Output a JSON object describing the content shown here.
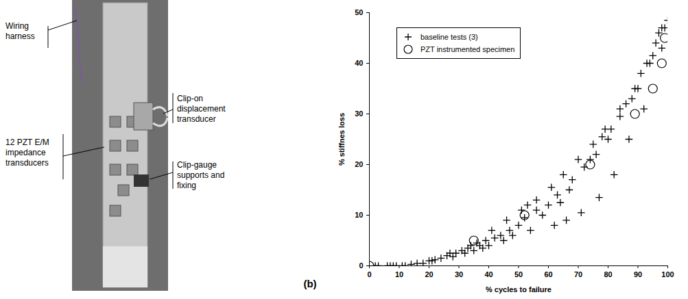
{
  "photo": {
    "labels": [
      "Wiring harness",
      "Clip-on displacement transducer",
      "12 PZT E/M impedance transducers",
      "Clip-gauge supports and fixing"
    ]
  },
  "panel_label": "(b)",
  "chart_data": {
    "type": "scatter",
    "x_label": "% cycles to failure",
    "y_label": "% stiffnes loss",
    "xlim": [
      0,
      100
    ],
    "ylim": [
      0,
      50
    ],
    "xticks": [
      0,
      10,
      20,
      30,
      40,
      50,
      60,
      70,
      80,
      90,
      100
    ],
    "yticks": [
      0,
      10,
      20,
      30,
      40,
      50
    ],
    "grid": false,
    "legend": "upper left",
    "series": [
      {
        "name": "baseline tests (3)",
        "color": "#000000",
        "marker": "plus",
        "x": [
          2,
          3,
          6,
          7,
          8,
          9,
          11,
          12,
          14,
          16,
          18,
          20,
          21,
          22,
          24,
          26,
          27,
          28,
          29,
          31,
          32,
          33,
          34,
          35,
          36,
          37,
          38,
          39,
          40,
          41,
          42,
          44,
          45,
          46,
          47,
          48,
          50,
          51,
          52,
          53,
          54,
          56,
          56,
          58,
          60,
          61,
          62,
          63,
          64,
          65,
          66,
          67,
          68,
          70,
          71,
          72,
          74,
          75,
          76,
          77,
          78,
          79,
          80,
          81,
          82,
          84,
          84,
          86,
          87,
          88,
          89,
          90,
          91,
          92,
          93,
          94,
          95,
          96,
          97,
          98,
          98,
          99,
          100
        ],
        "values": [
          0,
          0,
          0,
          0,
          0,
          0,
          0,
          0,
          0.3,
          0.5,
          0.5,
          1,
          1,
          1.2,
          1.5,
          2,
          2.5,
          1.8,
          2.5,
          3,
          2.5,
          3.5,
          4,
          3,
          4.5,
          4,
          3.5,
          5,
          4,
          7,
          5.5,
          6,
          5,
          9,
          7,
          6,
          8,
          11,
          9.5,
          12,
          7,
          11,
          13,
          10,
          12,
          15.5,
          8,
          14,
          12.5,
          18,
          9,
          15,
          17,
          21,
          10.5,
          19.5,
          21,
          24,
          22,
          13.5,
          25.5,
          27,
          25,
          27,
          18,
          29.5,
          31,
          32,
          25,
          33,
          35,
          35,
          38,
          31,
          40,
          40,
          41.5,
          44,
          46,
          47,
          43,
          47,
          48.5
        ]
      },
      {
        "name": "PZT instrumented specimen",
        "color": "#000000",
        "marker": "circle",
        "x": [
          0,
          35,
          52,
          74,
          89,
          95,
          98,
          99
        ],
        "values": [
          0,
          5,
          10,
          20,
          30,
          35,
          40,
          45
        ]
      }
    ]
  }
}
